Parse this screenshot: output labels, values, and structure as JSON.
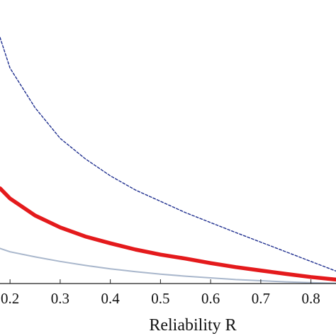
{
  "chart_data": {
    "type": "line",
    "title": "",
    "xlabel": "Reliability R",
    "ylabel": "",
    "xlim": [
      0.18,
      0.85
    ],
    "ylim": [
      0,
      1
    ],
    "x_ticks": [
      "0.2",
      "0.3",
      "0.4",
      "0.5",
      "0.6",
      "0.7",
      "0.8"
    ],
    "x_tick_values": [
      0.2,
      0.3,
      0.4,
      0.5,
      0.6,
      0.7,
      0.8
    ],
    "grid": false,
    "legend": "none",
    "series": [
      {
        "style": "dashed",
        "color": "#1f2f8f",
        "x": [
          0.18,
          0.2,
          0.25,
          0.3,
          0.35,
          0.4,
          0.45,
          0.5,
          0.55,
          0.6,
          0.65,
          0.7,
          0.75,
          0.8,
          0.85
        ],
        "y": [
          0.868,
          0.76,
          0.62,
          0.512,
          0.44,
          0.38,
          0.33,
          0.29,
          0.25,
          0.215,
          0.18,
          0.146,
          0.112,
          0.078,
          0.044
        ]
      },
      {
        "style": "solid-thick",
        "color": "#e41a1c",
        "x": [
          0.18,
          0.2,
          0.25,
          0.3,
          0.35,
          0.4,
          0.45,
          0.5,
          0.55,
          0.6,
          0.65,
          0.7,
          0.75,
          0.8,
          0.85
        ],
        "y": [
          0.336,
          0.3,
          0.24,
          0.198,
          0.166,
          0.142,
          0.12,
          0.102,
          0.088,
          0.072,
          0.058,
          0.046,
          0.034,
          0.023,
          0.014
        ]
      },
      {
        "style": "solid-thin",
        "color": "#a9b7cc",
        "x": [
          0.18,
          0.2,
          0.25,
          0.3,
          0.35,
          0.4,
          0.45,
          0.5,
          0.55,
          0.6,
          0.65,
          0.7,
          0.75,
          0.8,
          0.85
        ],
        "y": [
          0.124,
          0.112,
          0.094,
          0.078,
          0.064,
          0.052,
          0.042,
          0.033,
          0.026,
          0.02,
          0.014,
          0.01,
          0.006,
          0.003,
          0.001
        ]
      }
    ]
  }
}
